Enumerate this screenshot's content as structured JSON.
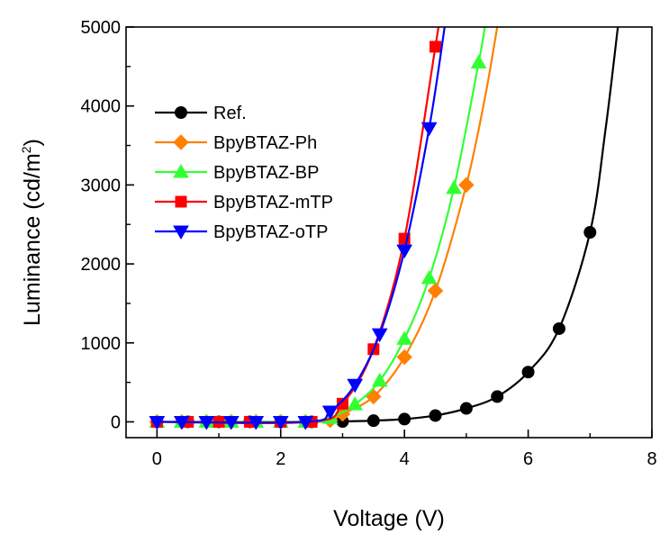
{
  "chart_data": {
    "type": "line",
    "title": "",
    "xlabel": "Voltage (V)",
    "ylabel": "Luminance (cd/m",
    "ylabel_sup": "2",
    "ylabel_tail": ")",
    "xlim": [
      -0.5,
      8
    ],
    "ylim": [
      -200,
      5000
    ],
    "xticks": [
      0,
      2,
      4,
      6,
      8
    ],
    "yticks": [
      0,
      1000,
      2000,
      3000,
      4000,
      5000
    ],
    "x_tick_labels": [
      "0",
      "2",
      "4",
      "6",
      "8"
    ],
    "y_tick_labels": [
      "0",
      "1000",
      "2000",
      "3000",
      "4000",
      "5000"
    ],
    "grid": false,
    "legend_position": "upper-left",
    "series": [
      {
        "name": "Ref.",
        "color": "#000000",
        "marker": "circle",
        "x": [
          0,
          0.5,
          1,
          1.5,
          2,
          2.5,
          3,
          3.5,
          4,
          4.5,
          5,
          5.5,
          6,
          6.5,
          7
        ],
        "y": [
          0,
          0,
          0,
          0,
          0,
          0,
          5,
          15,
          35,
          80,
          170,
          320,
          630,
          1180,
          2400
        ],
        "line_x": [
          0,
          2.5,
          3,
          3.5,
          4,
          4.5,
          5,
          5.5,
          6,
          6.5,
          7,
          7.25,
          7.45
        ],
        "line_y": [
          0,
          0,
          5,
          15,
          35,
          80,
          170,
          320,
          630,
          1180,
          2400,
          3700,
          5000
        ]
      },
      {
        "name": "BpyBTAZ-Ph",
        "color": "#FF8000",
        "marker": "diamond",
        "x": [
          0,
          0.4,
          0.8,
          1.2,
          1.6,
          2,
          2.4,
          2.8,
          3,
          3.5,
          4,
          4.5,
          5
        ],
        "y": [
          0,
          0,
          0,
          0,
          0,
          0,
          0,
          20,
          100,
          320,
          820,
          1660,
          3000
        ],
        "line_x": [
          0,
          2.4,
          2.8,
          3,
          3.5,
          4,
          4.5,
          5,
          5.3,
          5.5
        ],
        "line_y": [
          0,
          0,
          20,
          100,
          320,
          820,
          1660,
          3000,
          4100,
          5000
        ]
      },
      {
        "name": "BpyBTAZ-BP",
        "color": "#33FF33",
        "marker": "triangle-up",
        "x": [
          0,
          0.4,
          0.8,
          1.2,
          1.6,
          2,
          2.4,
          2.8,
          3.2,
          3.6,
          4,
          4.4,
          4.8,
          5.2
        ],
        "y": [
          0,
          0,
          0,
          0,
          0,
          0,
          0,
          50,
          220,
          520,
          1050,
          1820,
          2960,
          4550
        ],
        "line_x": [
          0,
          2.4,
          2.8,
          3.2,
          3.6,
          4,
          4.4,
          4.8,
          5.2,
          5.3
        ],
        "line_y": [
          0,
          0,
          50,
          220,
          520,
          1050,
          1820,
          2960,
          4550,
          5000
        ]
      },
      {
        "name": "BpyBTAZ-mTP",
        "color": "#FF0000",
        "marker": "square",
        "x": [
          0,
          0.5,
          1,
          1.5,
          2,
          2.5,
          3,
          3.5,
          4,
          4.5
        ],
        "y": [
          0,
          0,
          0,
          0,
          0,
          0,
          230,
          920,
          2320,
          4750
        ],
        "line_x": [
          0,
          2.5,
          3,
          3.5,
          4,
          4.5,
          4.55
        ],
        "line_y": [
          0,
          0,
          230,
          920,
          2320,
          4750,
          5000
        ]
      },
      {
        "name": "BpyBTAZ-oTP",
        "color": "#0000FF",
        "marker": "triangle-down",
        "x": [
          0,
          0.4,
          0.8,
          1.2,
          1.6,
          2,
          2.4,
          2.8,
          3.2,
          3.6,
          4,
          4.4
        ],
        "y": [
          0,
          0,
          0,
          0,
          0,
          0,
          0,
          130,
          470,
          1110,
          2170,
          3720
        ],
        "line_x": [
          0,
          2.4,
          2.8,
          3.2,
          3.6,
          4,
          4.4,
          4.65
        ],
        "line_y": [
          0,
          0,
          130,
          470,
          1110,
          2170,
          3720,
          5000
        ]
      }
    ]
  }
}
